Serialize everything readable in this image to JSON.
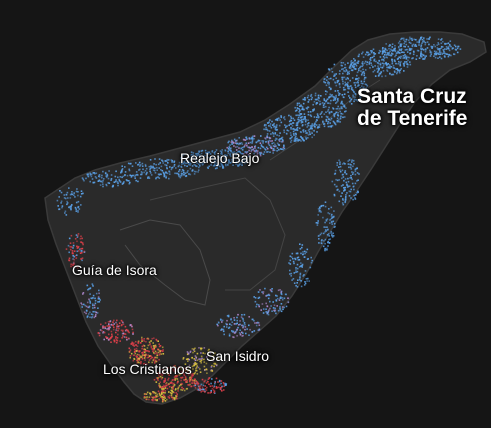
{
  "map": {
    "island": "Tenerife",
    "colors": {
      "background": "#151515",
      "land": "#2a2a2a",
      "coast": "#3a3a3a",
      "terrain_line": "#4a4a4a",
      "blue": "#5aa0e6",
      "red": "#e0404a",
      "yellow": "#d8c040",
      "violet": "#b08ad0"
    },
    "labels": {
      "santa_cruz_line1": "Santa Cruz",
      "santa_cruz_line2": "de Tenerife",
      "realejo_bajo": "Realejo Bajo",
      "guia_de_isora": "Guía de Isora",
      "san_isidro": "San Isidro",
      "los_cristianos": "Los Cristianos"
    }
  }
}
